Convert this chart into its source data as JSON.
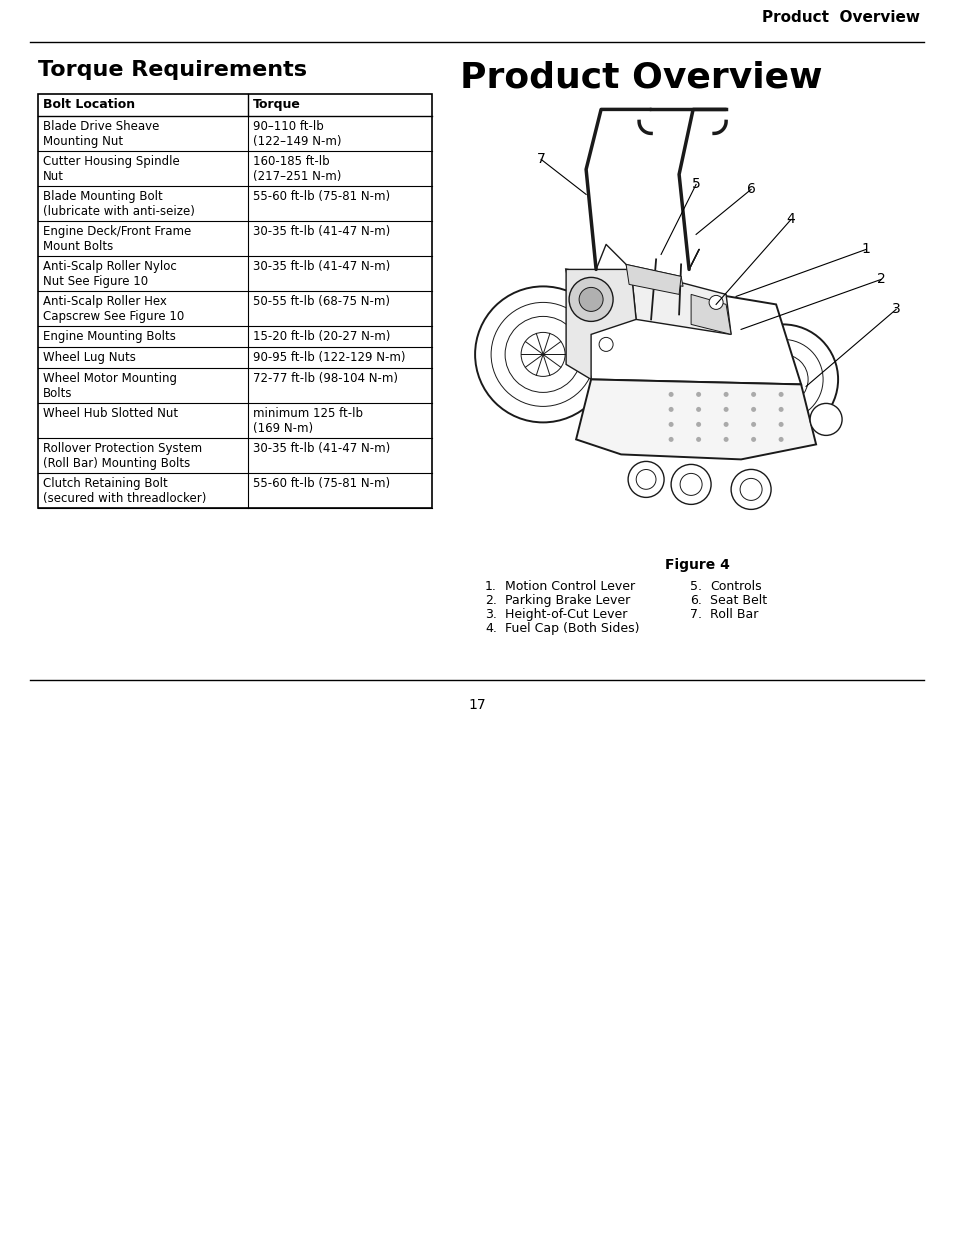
{
  "page_title_right": "Product  Overview",
  "section_title_left": "Torque Requirements",
  "section_title_right": "Product Overview",
  "table_headers": [
    "Bolt Location",
    "Torque"
  ],
  "table_rows": [
    [
      "Blade  Drive  Sheave\nMounting  Nut",
      "90–110  ft-lb\n(122–149  N-m)"
    ],
    [
      "Cutter  Housing  Spindle\nNut",
      "160-185  ft-lb\n(217–251  N-m)"
    ],
    [
      "Blade  Mounting  Bolt\n(lubricate  with  anti-seize)",
      "55-60 ft-lb (75-81 N-m)"
    ],
    [
      "Engine  Deck/Front  Frame\nMount  Bolts",
      "30-35 ft-lb (41-47 N-m)"
    ],
    [
      "Anti-Scalp  Roller  Nyloc\nNut See Figure 10",
      "30-35 ft-lb (41-47 N-m)"
    ],
    [
      "Anti-Scalp  Roller  Hex\nCapscrew  See  Figure  10",
      "50-55 ft-lb (68-75 N-m)"
    ],
    [
      "Engine  Mounting  Bolts",
      "15-20 ft-lb (20-27 N-m)"
    ],
    [
      "Wheel  Lug  Nuts",
      "90-95 ft-lb (122-129 N-m)"
    ],
    [
      "Wheel  Motor  Mounting\nBolts",
      "72-77 ft-lb (98-104 N-m)"
    ],
    [
      "Wheel  Hub  Slotted  Nut",
      "minimum  125  ft-lb\n(169 N-m)"
    ],
    [
      "Rollover  Protection  System\n(Roll  Bar)  Mounting  Bolts",
      "30-35 ft-lb (41-47 N-m)"
    ],
    [
      "Clutch  Retaining  Bolt\n(secured  with  threadlocker)",
      "55-60 ft-lb (75-81 N-m)"
    ]
  ],
  "figure_caption": "Figure 4",
  "figure_items": [
    [
      "1.",
      "Motion Control Lever",
      "5.",
      "Controls"
    ],
    [
      "2.",
      "Parking Brake Lever",
      "6.",
      "Seat Belt"
    ],
    [
      "3.",
      "Height-of-Cut Lever",
      "7.",
      "Roll Bar"
    ],
    [
      "4.",
      "Fuel Cap (Both Sides)",
      "",
      ""
    ]
  ],
  "page_number": "17",
  "bg_color": "#ffffff",
  "text_color": "#000000"
}
